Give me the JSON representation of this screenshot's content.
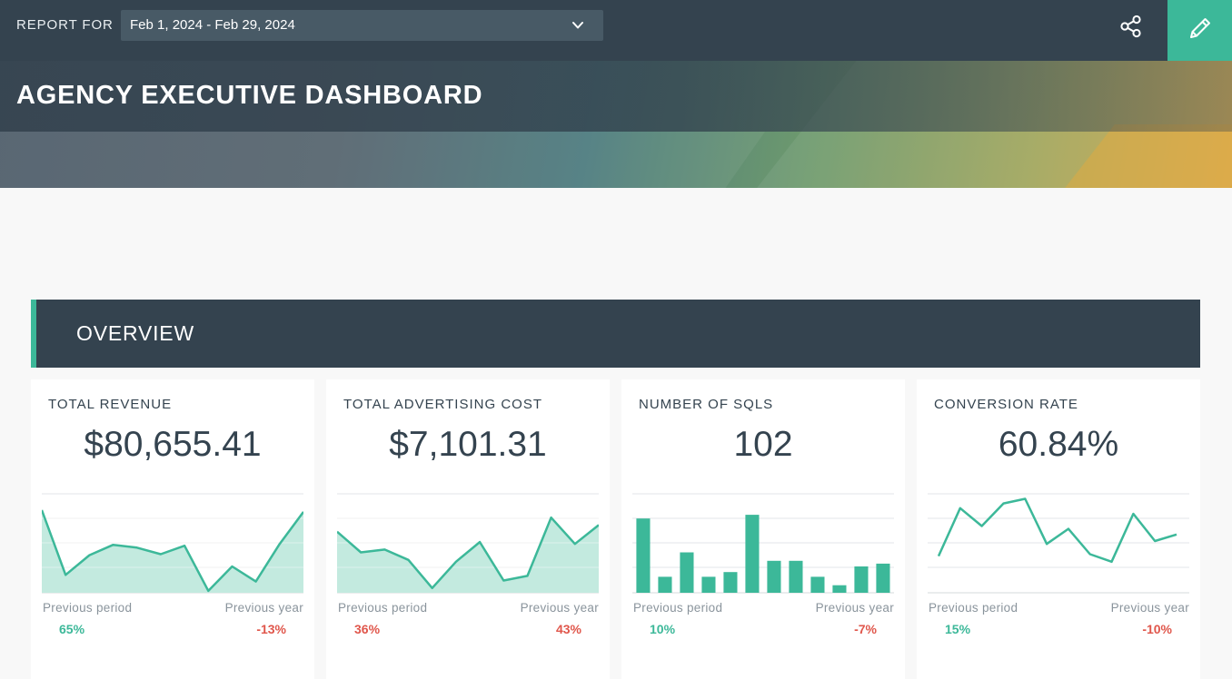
{
  "colors": {
    "topbar": "#34434f",
    "accent": "#3cb899",
    "positive": "#3cb899",
    "negative": "#e0564b",
    "chart_fill": "#c3eadf"
  },
  "header": {
    "report_for_label": "REPORT FOR",
    "date_range": "Feb 1, 2024 - Feb 29, 2024",
    "dropdown_icon": "chevron-down-icon",
    "share_icon": "share-icon",
    "edit_icon": "pencil-icon"
  },
  "hero": {
    "title": "AGENCY EXECUTIVE DASHBOARD"
  },
  "overview": {
    "title": "OVERVIEW"
  },
  "cards": [
    {
      "title": "TOTAL REVENUE",
      "value": "$80,655.41",
      "prev_period_label": "Previous period",
      "prev_year_label": "Previous year",
      "prev_period_pct": "65%",
      "prev_year_pct": "-13%"
    },
    {
      "title": "TOTAL ADVERTISING COST",
      "value": "$7,101.31",
      "prev_period_label": "Previous period",
      "prev_year_label": "Previous year",
      "prev_period_pct": "36%",
      "prev_year_pct": "43%"
    },
    {
      "title": "NUMBER OF SQLS",
      "value": "102",
      "prev_period_label": "Previous period",
      "prev_year_label": "Previous year",
      "prev_period_pct": "10%",
      "prev_year_pct": "-7%"
    },
    {
      "title": "CONVERSION RATE",
      "value": "60.84%",
      "prev_period_label": "Previous period",
      "prev_year_label": "Previous year",
      "prev_period_pct": "15%",
      "prev_year_pct": "-10%"
    }
  ],
  "chart_data": [
    {
      "type": "area",
      "values": [
        88,
        19,
        40,
        51,
        48,
        41,
        50,
        2,
        28,
        12,
        52,
        86
      ],
      "ylim": [
        0,
        100
      ]
    },
    {
      "type": "area",
      "values": [
        65,
        43,
        46,
        35,
        5,
        33,
        54,
        13,
        18,
        80,
        52,
        72
      ],
      "ylim": [
        0,
        100
      ]
    },
    {
      "type": "bar",
      "values": [
        79,
        17,
        43,
        17,
        22,
        83,
        34,
        34,
        17,
        8,
        28,
        31
      ],
      "ylim": [
        0,
        100
      ]
    },
    {
      "type": "line",
      "values": [
        39,
        90,
        71,
        95,
        100,
        52,
        68,
        41,
        33,
        84,
        55,
        62
      ],
      "ylim": [
        0,
        100
      ]
    }
  ]
}
